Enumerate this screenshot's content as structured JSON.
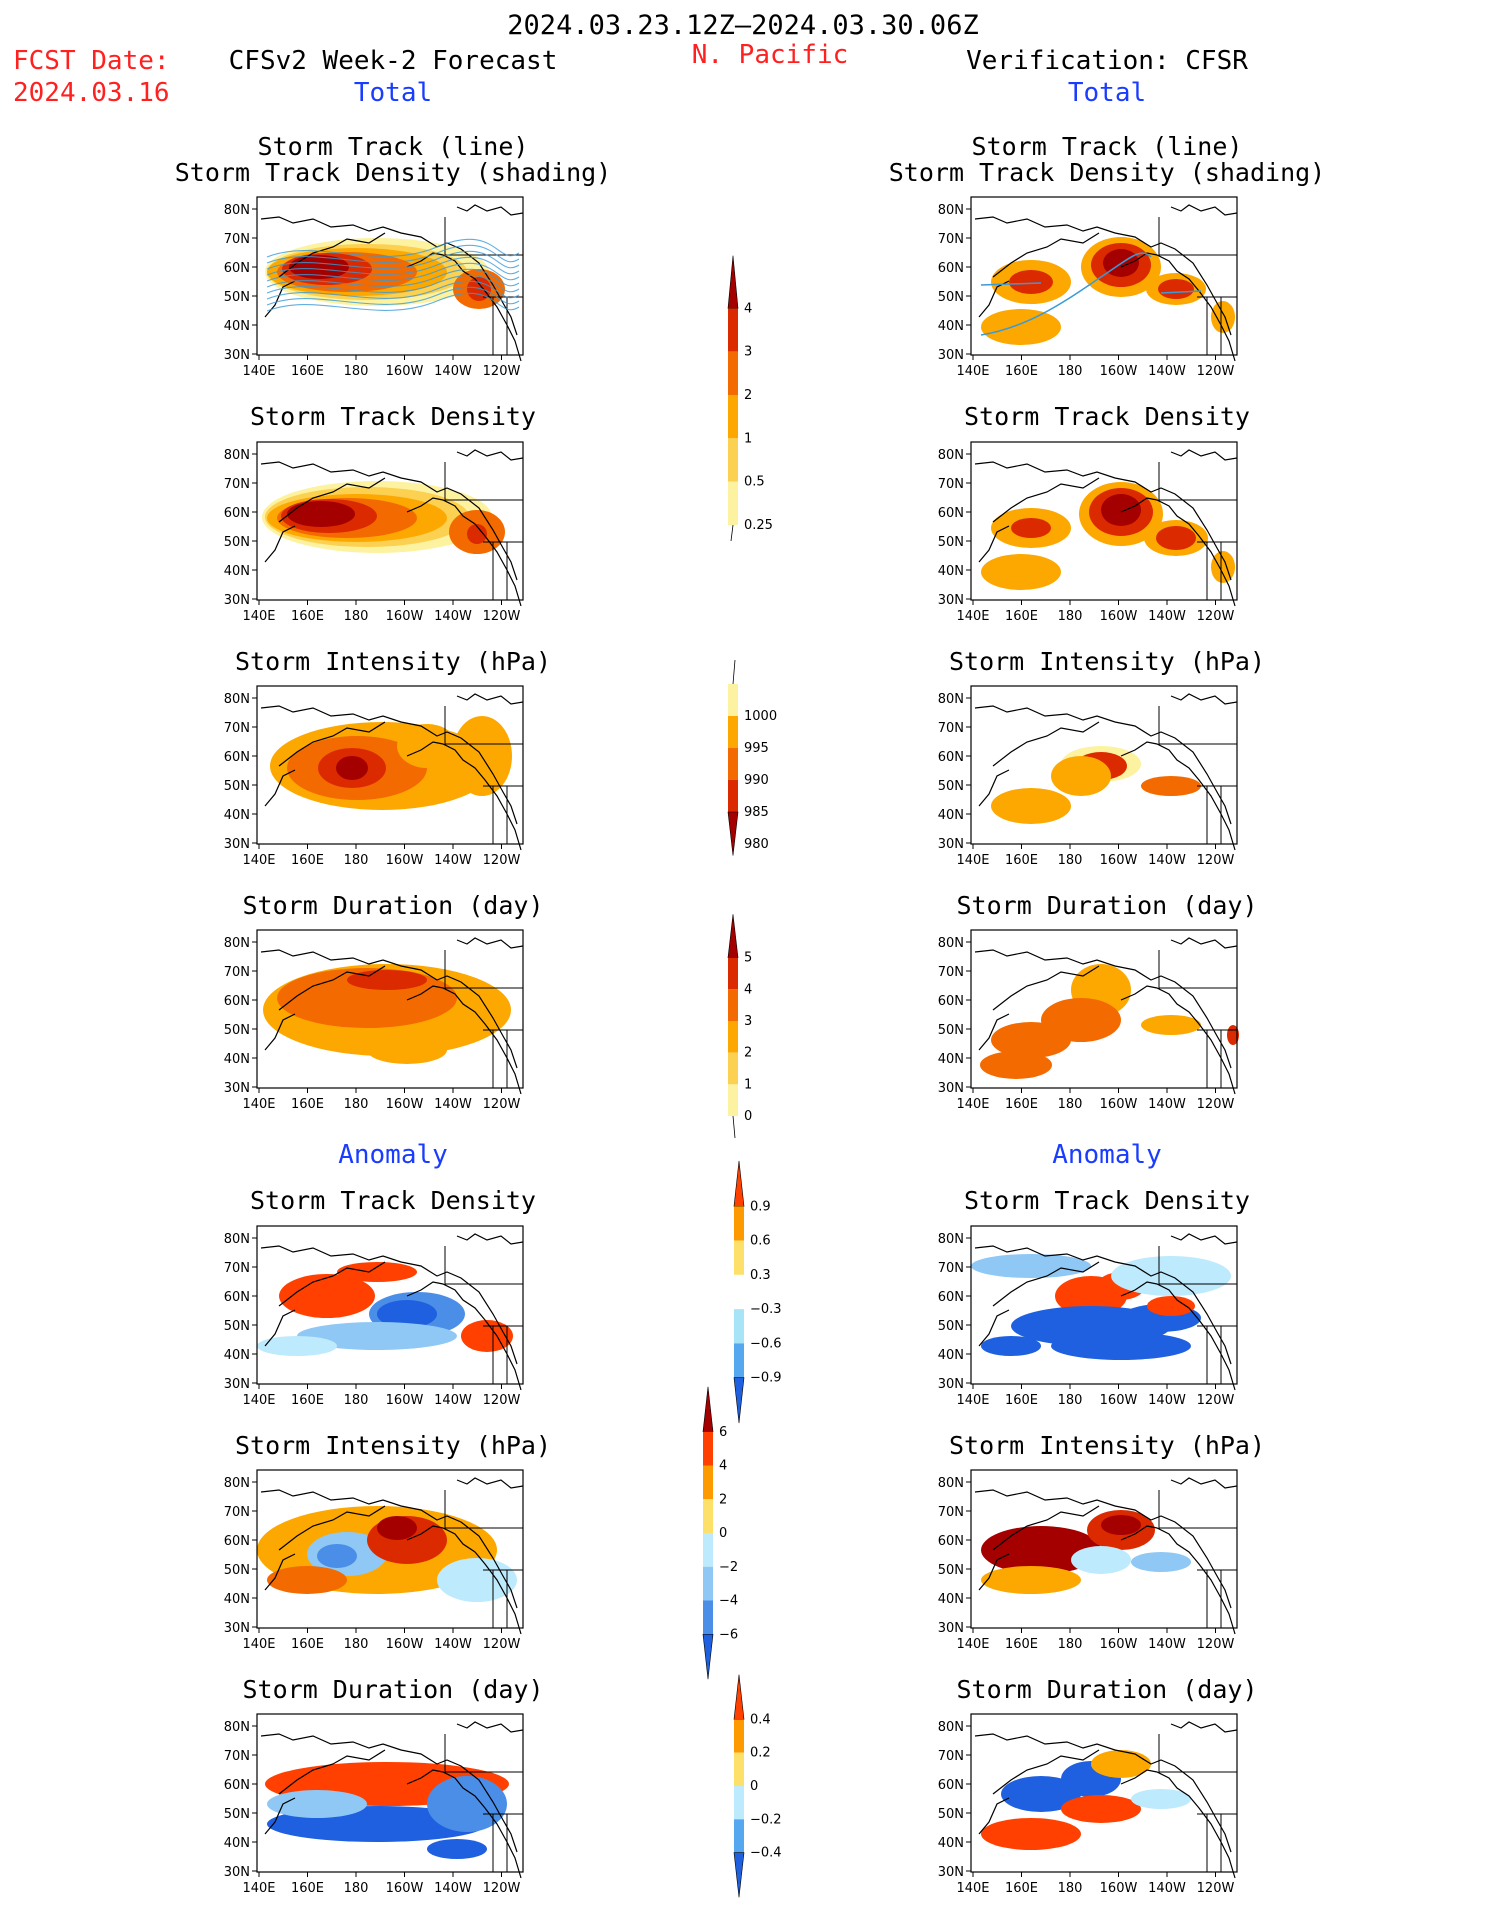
{
  "header": {
    "date_range": "2024.03.23.12Z–2024.03.30.06Z",
    "fcst_label": "FCST Date:",
    "fcst_date": "2024.03.16",
    "region": "N. Pacific",
    "left_title": "CFSv2 Week-2 Forecast",
    "right_title": "Verification: CFSR",
    "left_total": "Total",
    "right_total": "Total",
    "left_anomaly": "Anomaly",
    "right_anomaly": "Anomaly"
  },
  "panels": {
    "track_title1": "Storm Track (line)",
    "track_title2": "Storm Track Density (shading)",
    "density": "Storm Track Density",
    "intensity": "Storm Intensity (hPa)",
    "duration": "Storm Duration (day)"
  },
  "axes": {
    "lat_labels": [
      "80N",
      "70N",
      "60N",
      "50N",
      "40N",
      "30N"
    ],
    "lon_labels": [
      "140E",
      "160E",
      "180",
      "160W",
      "140W",
      "120W"
    ]
  },
  "colorbars": {
    "density": {
      "labels": [
        "4",
        "3",
        "2",
        "1",
        "0.5",
        "0.25"
      ],
      "colors": [
        "#a50000",
        "#dc2a00",
        "#f36a00",
        "#fca800",
        "#fcd050",
        "#fdf2a0"
      ]
    },
    "intensity": {
      "labels": [
        "1000",
        "995",
        "990",
        "985",
        "980"
      ],
      "colors": [
        "#fdf2a0",
        "#fca800",
        "#f36a00",
        "#dc2a00",
        "#a50000"
      ]
    },
    "duration": {
      "labels": [
        "5",
        "4",
        "3",
        "2",
        "1",
        "0"
      ],
      "colors": [
        "#a50000",
        "#dc2a00",
        "#f36a00",
        "#fca800",
        "#fcd050",
        "#fdf2a0"
      ]
    },
    "anom_density": {
      "labels": [
        "0.9",
        "0.6",
        "0.3",
        "−0.3",
        "−0.6",
        "−0.9"
      ],
      "colors": [
        "#ff4000",
        "#fc9a00",
        "#fde06a",
        "#ffffff",
        "#a8e4f8",
        "#55a8f0",
        "#1e60e0"
      ]
    },
    "anom_intensity": {
      "labels": [
        "6",
        "4",
        "2",
        "0",
        "−2",
        "−4",
        "−6"
      ],
      "colors": [
        "#a50000",
        "#ff4000",
        "#fc9a00",
        "#fde06a",
        "#bdeafc",
        "#8fc8f4",
        "#4a8ee8",
        "#1e60e0"
      ]
    },
    "anom_duration": {
      "labels": [
        "0.4",
        "0.2",
        "0",
        "−0.2",
        "−0.4"
      ],
      "colors": [
        "#ff4000",
        "#fc9a00",
        "#fde06a",
        "#bdeafc",
        "#55a8f0",
        "#1e60e0"
      ]
    }
  }
}
